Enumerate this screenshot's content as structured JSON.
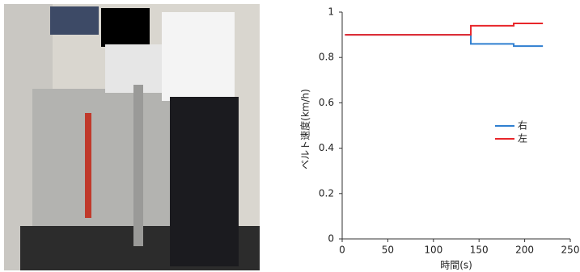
{
  "chart_data": {
    "type": "line",
    "xlabel": "時間(s)",
    "ylabel": "ベルト速度(km/h)",
    "x": [
      3,
      141,
      141,
      188,
      188,
      220
    ],
    "series": [
      {
        "name": "右",
        "color": "#2f7fd0",
        "values": [
          0.9,
          0.9,
          0.86,
          0.86,
          0.85,
          0.85
        ]
      },
      {
        "name": "左",
        "color": "#e8262a",
        "values": [
          0.9,
          0.9,
          0.94,
          0.94,
          0.95,
          0.95
        ]
      }
    ],
    "xlim": [
      0,
      250
    ],
    "xticks": [
      0,
      50,
      100,
      150,
      200,
      250
    ],
    "ylim": [
      0,
      1
    ],
    "yticks": [
      0,
      0.2,
      0.4,
      0.6,
      0.8,
      1
    ],
    "grid": false,
    "legend": "right"
  }
}
